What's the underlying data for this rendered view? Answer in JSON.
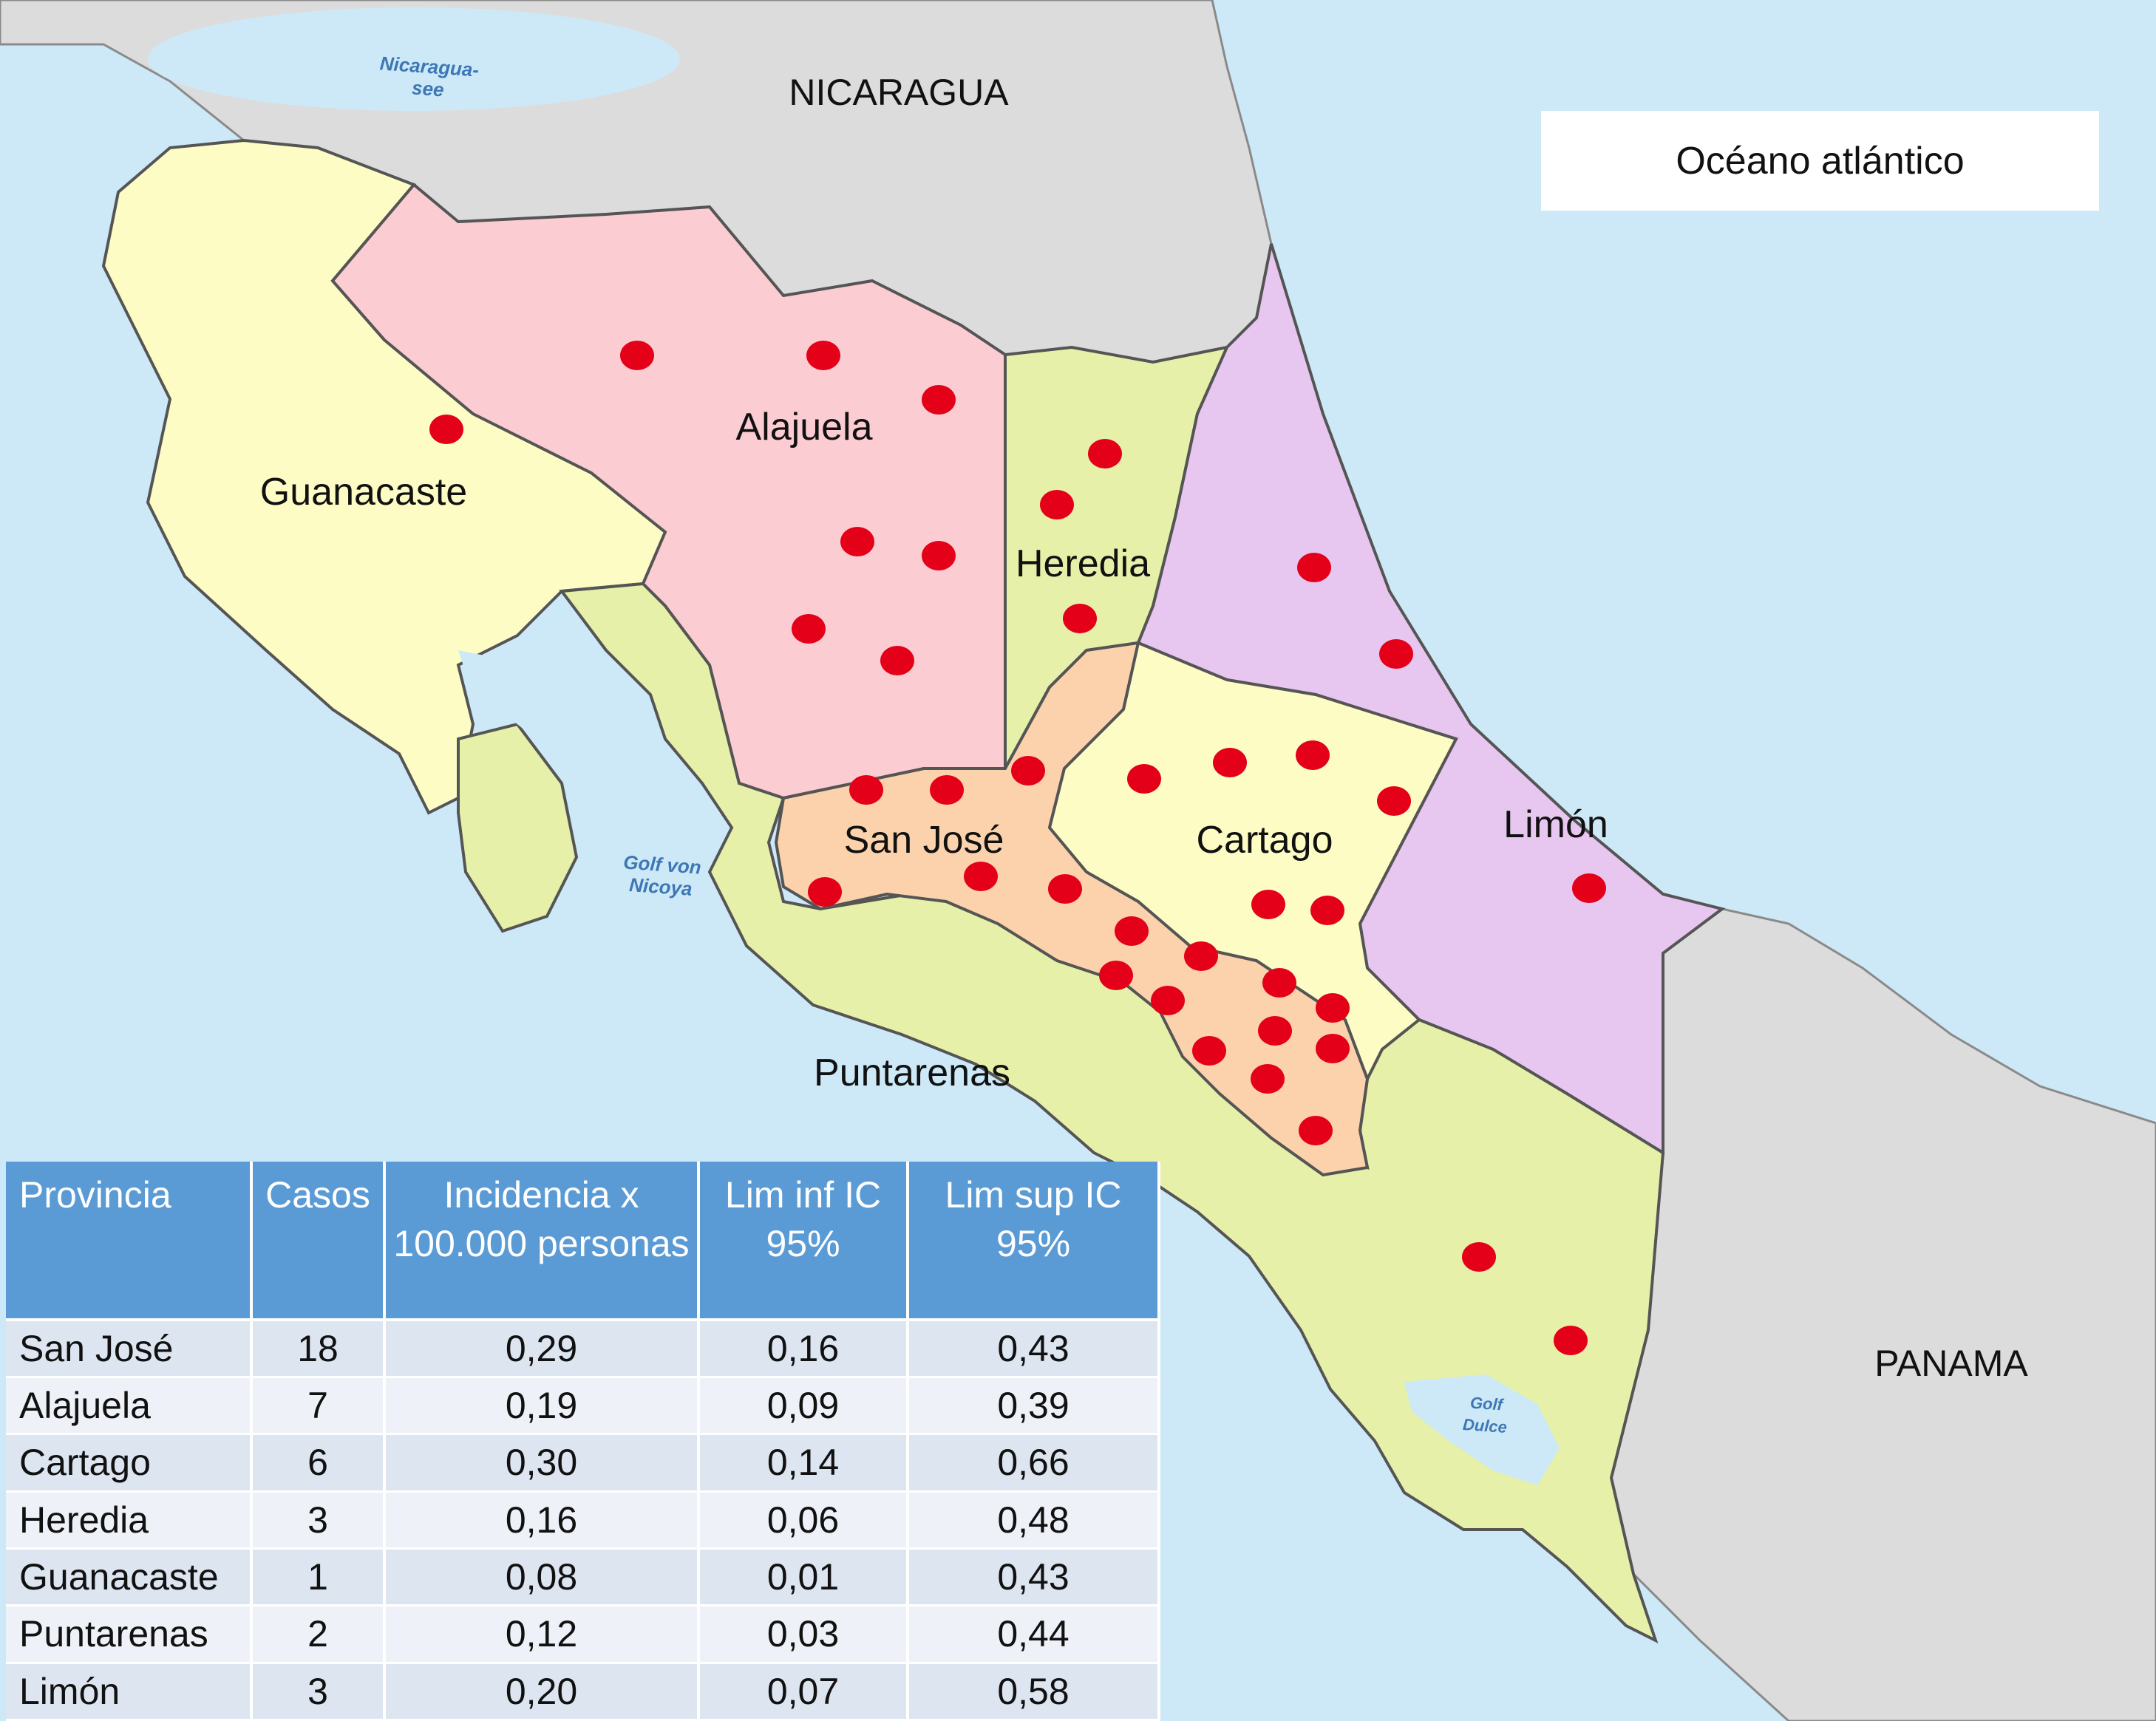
{
  "colors": {
    "sea": "#cde9f7",
    "neighbor_land": "#dcdcdc",
    "guanacaste": "#fdfcc4",
    "alajuela": "#fbcdd2",
    "heredia": "#e6f0a8",
    "limon": "#e7c6f0",
    "san_jose": "#fbd2ac",
    "cartago": "#fdfcc4",
    "puntarenas": "#e6f0a8",
    "case_dot": "#e5001a",
    "table_header": "#5b9bd5",
    "table_row": "#dde5f1"
  },
  "countries": {
    "north": "NICARAGUA",
    "south": "PANAMA"
  },
  "ocean_label": "Océano atlántico",
  "water_labels": {
    "lake": "Nicaragua-\nsee",
    "gulf_nicoya": "Golf von\nNicoya",
    "gulf_dulce": "Golf\nDulce"
  },
  "provinces": {
    "guanacaste": "Guanacaste",
    "alajuela": "Alajuela",
    "heredia": "Heredia",
    "limon": "Limón",
    "san_jose": "San José",
    "cartago": "Cartago",
    "puntarenas": "Puntarenas"
  },
  "table": {
    "headers": [
      "Provincia",
      "Casos",
      "Incidencia x 100.000 personas",
      "Lim inf IC 95%",
      "Lim sup IC 95%"
    ],
    "rows": [
      [
        "San José",
        "18",
        "0,29",
        "0,16",
        "0,43"
      ],
      [
        "Alajuela",
        "7",
        "0,19",
        "0,09",
        "0,39"
      ],
      [
        "Cartago",
        "6",
        "0,30",
        "0,14",
        "0,66"
      ],
      [
        "Heredia",
        "3",
        "0,16",
        "0,06",
        "0,48"
      ],
      [
        "Guanacaste",
        "1",
        "0,08",
        "0,01",
        "0,43"
      ],
      [
        "Puntarenas",
        "2",
        "0,12",
        "0,03",
        "0,44"
      ],
      [
        "Limón",
        "3",
        "0,20",
        "0,07",
        "0,58"
      ]
    ]
  }
}
